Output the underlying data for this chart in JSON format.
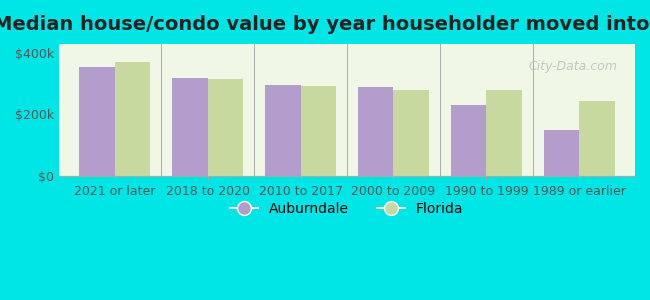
{
  "title": "Median house/condo value by year householder moved into unit",
  "categories": [
    "2021 or later",
    "2018 to 2020",
    "2010 to 2017",
    "2000 to 2009",
    "1990 to 1999",
    "1989 or earlier"
  ],
  "auburndale": [
    355000,
    320000,
    295000,
    288000,
    230000,
    148000
  ],
  "florida": [
    372000,
    315000,
    293000,
    278000,
    280000,
    245000
  ],
  "auburndale_color": "#b39dcc",
  "florida_color": "#c8d9a0",
  "background_color": "#00e5e5",
  "plot_bg_color": "#f0f7e6",
  "ylim": [
    0,
    430000
  ],
  "yticks": [
    0,
    200000,
    400000
  ],
  "ytick_labels": [
    "$0",
    "$200k",
    "$400k"
  ],
  "bar_width": 0.38,
  "legend_auburndale": "Auburndale",
  "legend_florida": "Florida",
  "title_fontsize": 14,
  "tick_fontsize": 9,
  "legend_fontsize": 10
}
